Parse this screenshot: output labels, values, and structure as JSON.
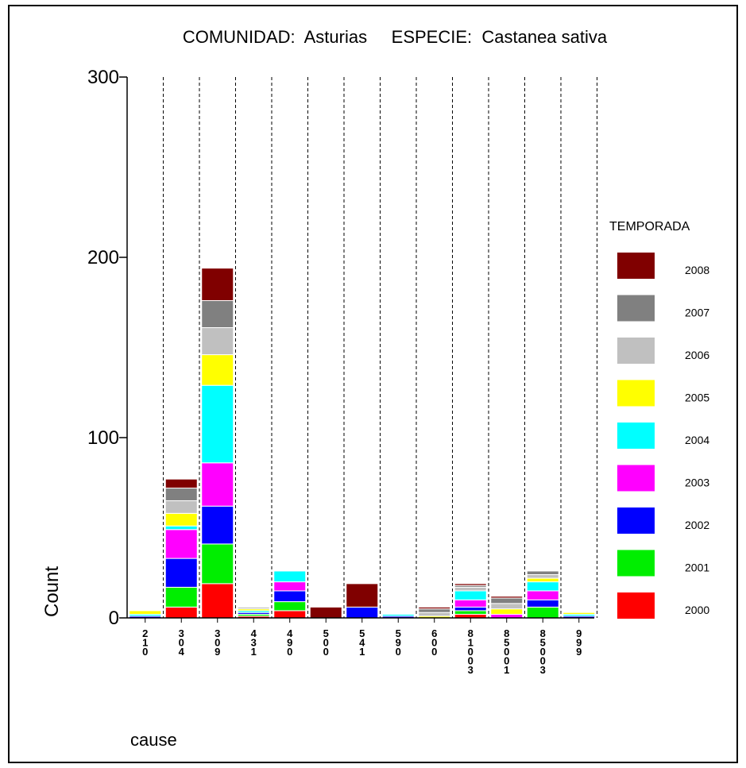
{
  "chart_data": {
    "type": "bar",
    "stacked": true,
    "title": "COMUNIDAD:  Asturias     ESPECIE:  Castanea sativa",
    "xlabel": "cause",
    "ylabel": "Count",
    "ylim": [
      0,
      300
    ],
    "yticks": [
      0,
      100,
      200,
      300
    ],
    "grid": "vertical-dashed",
    "legend_title": "TEMPORADA",
    "legend_position": "right",
    "categories": [
      "210",
      "304",
      "309",
      "431",
      "490",
      "500",
      "541",
      "590",
      "600",
      "81003",
      "85001",
      "85003",
      "999"
    ],
    "series": [
      {
        "name": "2000",
        "color": "#ff0000",
        "values": [
          0,
          6,
          19,
          1,
          4,
          0,
          0,
          0,
          0,
          2,
          0,
          0,
          0
        ]
      },
      {
        "name": "2001",
        "color": "#00ee00",
        "values": [
          0,
          11,
          22,
          1,
          5,
          0,
          0,
          0,
          0,
          2,
          0,
          6,
          0
        ]
      },
      {
        "name": "2002",
        "color": "#0000ff",
        "values": [
          1,
          16,
          21,
          1,
          6,
          0,
          6,
          1,
          0,
          2,
          0,
          4,
          1
        ]
      },
      {
        "name": "2003",
        "color": "#ff00ff",
        "values": [
          0,
          16,
          24,
          0,
          5,
          0,
          0,
          0,
          0,
          4,
          2,
          5,
          0
        ]
      },
      {
        "name": "2004",
        "color": "#00ffff",
        "values": [
          1,
          2,
          43,
          1,
          6,
          0,
          0,
          1,
          0,
          5,
          0,
          5,
          1
        ]
      },
      {
        "name": "2005",
        "color": "#ffff00",
        "values": [
          2,
          7,
          17,
          1,
          0,
          0,
          0,
          0,
          1,
          0,
          3,
          2,
          1
        ]
      },
      {
        "name": "2006",
        "color": "#c0c0c0",
        "values": [
          0,
          7,
          15,
          1,
          0,
          0,
          0,
          0,
          2,
          2,
          3,
          2,
          0
        ]
      },
      {
        "name": "2007",
        "color": "#808080",
        "values": [
          0,
          7,
          15,
          0,
          0,
          0,
          0,
          0,
          2,
          1,
          3,
          2,
          0
        ]
      },
      {
        "name": "2008",
        "color": "#800000",
        "values": [
          0,
          5,
          18,
          0,
          0,
          6,
          13,
          0,
          1,
          1,
          1,
          0,
          0
        ]
      }
    ]
  }
}
